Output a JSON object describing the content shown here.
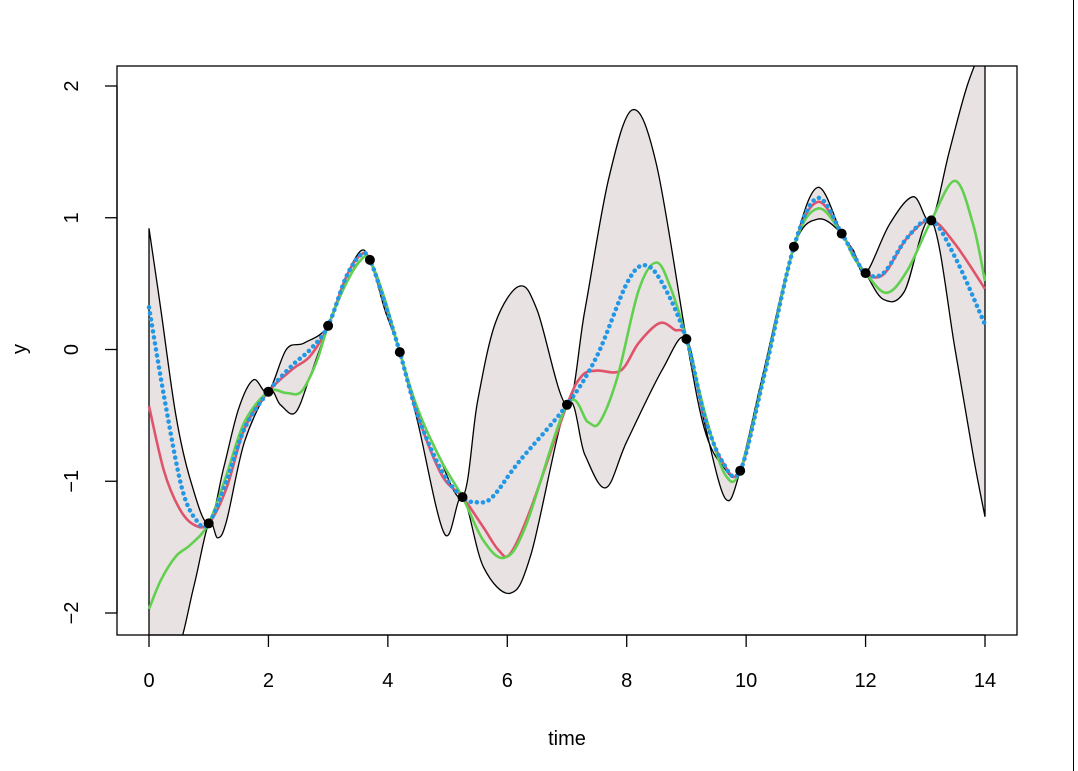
{
  "chart_data": {
    "type": "line",
    "title": "",
    "xlabel": "time",
    "ylabel": "y",
    "xlim": [
      0,
      14
    ],
    "ylim": [
      -2,
      2
    ],
    "xticks": [
      0,
      2,
      4,
      6,
      8,
      10,
      12,
      14
    ],
    "xtick_labels": [
      "0",
      "2",
      "4",
      "6",
      "8",
      "10",
      "12",
      "14"
    ],
    "yticks": [
      -2,
      -1,
      0,
      1,
      2
    ],
    "ytick_labels": [
      "−2",
      "−1",
      "0",
      "1",
      "2"
    ],
    "grid": false,
    "legend": "none",
    "band": {
      "color": "#e8e2e2",
      "upper": [
        [
          0,
          0.92
        ],
        [
          0.2,
          0.3
        ],
        [
          0.45,
          -0.5
        ],
        [
          0.7,
          -1.0
        ],
        [
          1,
          -1.32
        ],
        [
          1.25,
          -0.9
        ],
        [
          1.5,
          -0.45
        ],
        [
          1.75,
          -0.23
        ],
        [
          2,
          -0.32
        ],
        [
          2.3,
          0.0
        ],
        [
          2.6,
          0.05
        ],
        [
          3,
          0.18
        ],
        [
          3.3,
          0.55
        ],
        [
          3.55,
          0.75
        ],
        [
          3.7,
          0.68
        ],
        [
          3.9,
          0.45
        ],
        [
          4.2,
          -0.02
        ],
        [
          4.4,
          -0.35
        ],
        [
          4.8,
          -0.75
        ],
        [
          5.25,
          -1.12
        ],
        [
          5.5,
          -0.4
        ],
        [
          5.8,
          0.2
        ],
        [
          6.2,
          0.48
        ],
        [
          6.5,
          0.3
        ],
        [
          7,
          -0.42
        ],
        [
          7.3,
          0.3
        ],
        [
          7.7,
          1.3
        ],
        [
          8.1,
          1.82
        ],
        [
          8.5,
          1.4
        ],
        [
          9,
          0.08
        ],
        [
          9.3,
          -0.6
        ],
        [
          9.6,
          -0.88
        ],
        [
          9.9,
          -0.92
        ],
        [
          10.3,
          -0.2
        ],
        [
          10.8,
          0.78
        ],
        [
          11.2,
          1.23
        ],
        [
          11.6,
          0.88
        ],
        [
          11.8,
          0.75
        ],
        [
          12,
          0.58
        ],
        [
          12.4,
          0.95
        ],
        [
          12.8,
          1.16
        ],
        [
          13.1,
          0.98
        ],
        [
          13.4,
          1.5
        ],
        [
          13.7,
          2.0
        ],
        [
          14,
          2.35
        ]
      ],
      "lower": [
        [
          0,
          -2.3
        ],
        [
          0.45,
          -2.3
        ],
        [
          0.75,
          -1.8
        ],
        [
          1,
          -1.32
        ],
        [
          1.15,
          -1.43
        ],
        [
          1.3,
          -1.3
        ],
        [
          1.6,
          -0.7
        ],
        [
          2,
          -0.32
        ],
        [
          2.2,
          -0.42
        ],
        [
          2.45,
          -0.48
        ],
        [
          2.7,
          -0.2
        ],
        [
          3,
          0.18
        ],
        [
          3.3,
          0.5
        ],
        [
          3.5,
          0.66
        ],
        [
          3.7,
          0.68
        ],
        [
          3.95,
          0.3
        ],
        [
          4.2,
          -0.02
        ],
        [
          4.5,
          -0.55
        ],
        [
          4.95,
          -1.4
        ],
        [
          5.25,
          -1.12
        ],
        [
          5.6,
          -1.65
        ],
        [
          6.05,
          -1.85
        ],
        [
          6.4,
          -1.55
        ],
        [
          7,
          -0.42
        ],
        [
          7.3,
          -0.8
        ],
        [
          7.65,
          -1.05
        ],
        [
          8,
          -0.7
        ],
        [
          8.6,
          -0.15
        ],
        [
          9,
          0.08
        ],
        [
          9.3,
          -0.55
        ],
        [
          9.65,
          -1.13
        ],
        [
          9.9,
          -0.92
        ],
        [
          10.3,
          -0.15
        ],
        [
          10.8,
          0.78
        ],
        [
          11.2,
          0.99
        ],
        [
          11.6,
          0.88
        ],
        [
          11.8,
          0.72
        ],
        [
          12,
          0.58
        ],
        [
          12.3,
          0.38
        ],
        [
          12.65,
          0.44
        ],
        [
          13.1,
          0.98
        ],
        [
          13.5,
          0.0
        ],
        [
          13.8,
          -0.8
        ],
        [
          14,
          -1.27
        ]
      ]
    },
    "series": [
      {
        "color": "#df536b",
        "style": "solid",
        "points": [
          [
            0,
            -0.43
          ],
          [
            0.25,
            -0.92
          ],
          [
            0.5,
            -1.2
          ],
          [
            0.75,
            -1.33
          ],
          [
            1,
            -1.32
          ],
          [
            1.3,
            -1.05
          ],
          [
            1.6,
            -0.6
          ],
          [
            2,
            -0.32
          ],
          [
            2.4,
            -0.15
          ],
          [
            2.7,
            -0.05
          ],
          [
            3,
            0.18
          ],
          [
            3.3,
            0.55
          ],
          [
            3.55,
            0.72
          ],
          [
            3.7,
            0.68
          ],
          [
            3.95,
            0.35
          ],
          [
            4.2,
            -0.02
          ],
          [
            4.5,
            -0.5
          ],
          [
            4.9,
            -0.95
          ],
          [
            5.25,
            -1.12
          ],
          [
            5.6,
            -1.35
          ],
          [
            5.85,
            -1.52
          ],
          [
            6.05,
            -1.55
          ],
          [
            6.4,
            -1.2
          ],
          [
            7,
            -0.42
          ],
          [
            7.25,
            -0.2
          ],
          [
            7.5,
            -0.16
          ],
          [
            7.9,
            -0.16
          ],
          [
            8.2,
            0.05
          ],
          [
            8.55,
            0.2
          ],
          [
            8.8,
            0.15
          ],
          [
            9,
            0.08
          ],
          [
            9.3,
            -0.5
          ],
          [
            9.6,
            -0.85
          ],
          [
            9.9,
            -0.92
          ],
          [
            10.3,
            -0.2
          ],
          [
            10.8,
            0.78
          ],
          [
            11.2,
            1.12
          ],
          [
            11.6,
            0.88
          ],
          [
            11.8,
            0.72
          ],
          [
            12,
            0.58
          ],
          [
            12.3,
            0.57
          ],
          [
            12.7,
            0.85
          ],
          [
            13.1,
            0.98
          ],
          [
            13.5,
            0.8
          ],
          [
            14,
            0.46
          ]
        ]
      },
      {
        "color": "#61d04f",
        "style": "solid",
        "points": [
          [
            0,
            -1.97
          ],
          [
            0.2,
            -1.75
          ],
          [
            0.45,
            -1.57
          ],
          [
            0.7,
            -1.48
          ],
          [
            1,
            -1.32
          ],
          [
            1.3,
            -0.95
          ],
          [
            1.6,
            -0.55
          ],
          [
            2,
            -0.32
          ],
          [
            2.3,
            -0.33
          ],
          [
            2.55,
            -0.32
          ],
          [
            2.8,
            -0.1
          ],
          [
            3,
            0.18
          ],
          [
            3.3,
            0.5
          ],
          [
            3.55,
            0.68
          ],
          [
            3.7,
            0.68
          ],
          [
            3.95,
            0.38
          ],
          [
            4.2,
            -0.02
          ],
          [
            4.5,
            -0.45
          ],
          [
            4.9,
            -0.85
          ],
          [
            5.25,
            -1.12
          ],
          [
            5.6,
            -1.45
          ],
          [
            5.95,
            -1.58
          ],
          [
            6.3,
            -1.35
          ],
          [
            7,
            -0.42
          ],
          [
            7.35,
            -0.55
          ],
          [
            7.55,
            -0.55
          ],
          [
            7.85,
            -0.2
          ],
          [
            8.2,
            0.45
          ],
          [
            8.5,
            0.66
          ],
          [
            8.75,
            0.45
          ],
          [
            9,
            0.08
          ],
          [
            9.35,
            -0.55
          ],
          [
            9.65,
            -0.95
          ],
          [
            9.9,
            -0.92
          ],
          [
            10.3,
            -0.2
          ],
          [
            10.8,
            0.78
          ],
          [
            11.2,
            1.07
          ],
          [
            11.6,
            0.88
          ],
          [
            11.8,
            0.7
          ],
          [
            12,
            0.58
          ],
          [
            12.35,
            0.43
          ],
          [
            12.7,
            0.6
          ],
          [
            13.1,
            0.98
          ],
          [
            13.5,
            1.28
          ],
          [
            13.8,
            0.95
          ],
          [
            14,
            0.52
          ]
        ]
      },
      {
        "color": "#2297e6",
        "style": "dotted",
        "points": [
          [
            0,
            0.32
          ],
          [
            0.25,
            -0.35
          ],
          [
            0.55,
            -1.05
          ],
          [
            0.8,
            -1.3
          ],
          [
            1,
            -1.32
          ],
          [
            1.3,
            -1.0
          ],
          [
            1.6,
            -0.6
          ],
          [
            2,
            -0.32
          ],
          [
            2.4,
            -0.12
          ],
          [
            2.7,
            0.0
          ],
          [
            3,
            0.18
          ],
          [
            3.3,
            0.55
          ],
          [
            3.55,
            0.72
          ],
          [
            3.7,
            0.68
          ],
          [
            3.95,
            0.35
          ],
          [
            4.2,
            -0.02
          ],
          [
            4.5,
            -0.5
          ],
          [
            4.9,
            -0.92
          ],
          [
            5.25,
            -1.12
          ],
          [
            5.5,
            -1.16
          ],
          [
            5.75,
            -1.12
          ],
          [
            6.2,
            -0.85
          ],
          [
            7,
            -0.42
          ],
          [
            7.5,
            -0.05
          ],
          [
            8,
            0.5
          ],
          [
            8.3,
            0.64
          ],
          [
            8.6,
            0.5
          ],
          [
            9,
            0.08
          ],
          [
            9.3,
            -0.5
          ],
          [
            9.6,
            -0.85
          ],
          [
            9.9,
            -0.92
          ],
          [
            10.3,
            -0.2
          ],
          [
            10.8,
            0.78
          ],
          [
            11.2,
            1.15
          ],
          [
            11.6,
            0.88
          ],
          [
            11.8,
            0.72
          ],
          [
            12,
            0.58
          ],
          [
            12.3,
            0.58
          ],
          [
            12.7,
            0.85
          ],
          [
            13.1,
            0.98
          ],
          [
            13.5,
            0.7
          ],
          [
            14,
            0.19
          ]
        ]
      }
    ],
    "observations": {
      "color": "#000000",
      "x": [
        1,
        2,
        3,
        3.7,
        4.2,
        5.25,
        7,
        9,
        9.9,
        10.8,
        11.6,
        12,
        13.1
      ],
      "y": [
        -1.32,
        -0.32,
        0.18,
        0.68,
        -0.02,
        -1.12,
        -0.42,
        0.08,
        -0.92,
        0.78,
        0.88,
        0.58,
        0.98
      ]
    }
  }
}
